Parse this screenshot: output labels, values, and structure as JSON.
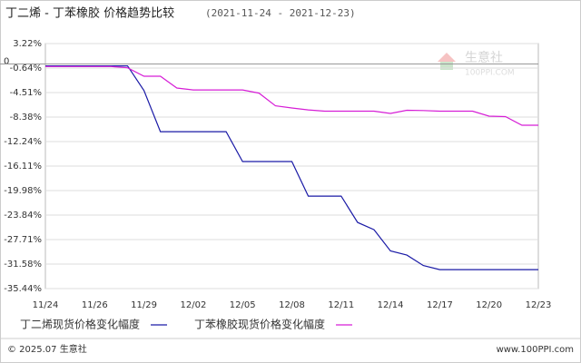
{
  "chart_data": {
    "type": "line",
    "title": "丁二烯 - 丁苯橡胶 价格趋势比较",
    "subtitle": "(2021-11-24 - 2021-12-23)",
    "categories": [
      "11/24",
      null,
      null,
      "11/26",
      null,
      null,
      "11/29",
      null,
      null,
      "12/02",
      null,
      null,
      "12/05",
      null,
      null,
      "12/08",
      null,
      null,
      "12/11",
      null,
      null,
      "12/14",
      null,
      null,
      "12/17",
      null,
      null,
      "12/20",
      null,
      null,
      "12/23"
    ],
    "series": [
      {
        "name": "丁二烯现货价格变化幅度",
        "color": "#1a1aa6",
        "values": [
          -0.3,
          -0.3,
          -0.3,
          -0.3,
          -0.3,
          -0.3,
          -4.2,
          -10.68,
          -10.68,
          -10.68,
          -10.68,
          -10.68,
          -15.4,
          -15.4,
          -15.4,
          -15.4,
          -20.85,
          -20.85,
          -20.85,
          -25.0,
          -26.15,
          -29.5,
          -30.16,
          -31.8,
          -32.45,
          -32.45,
          -32.45,
          -32.45,
          -32.45,
          -32.45,
          -32.45
        ]
      },
      {
        "name": "丁苯橡胶现货价格变化幅度",
        "color": "#d61ed6",
        "values": [
          -0.4,
          -0.4,
          -0.4,
          -0.4,
          -0.4,
          -0.6,
          -1.94,
          -1.94,
          -3.8,
          -4.09,
          -4.09,
          -4.09,
          -4.09,
          -4.6,
          -6.6,
          -6.95,
          -7.24,
          -7.45,
          -7.45,
          -7.45,
          -7.45,
          -7.8,
          -7.3,
          -7.35,
          -7.45,
          -7.45,
          -7.45,
          -8.24,
          -8.3,
          -9.67,
          -9.67
        ]
      }
    ],
    "ylim": [
      -35.44,
      3.22
    ],
    "yticks": [
      {
        "value": 3.22,
        "label": "3.22%"
      },
      0,
      {
        "value": -0.64,
        "label": "-0.64%"
      },
      {
        "value": -4.51,
        "label": "-4.51%"
      },
      {
        "value": -8.38,
        "label": "-8.38%"
      },
      {
        "value": -12.24,
        "label": "-12.24%"
      },
      {
        "value": -16.11,
        "label": "-16.11%"
      },
      {
        "value": -19.98,
        "label": "-19.98%"
      },
      {
        "value": -23.84,
        "label": "-23.84%"
      },
      {
        "value": -27.71,
        "label": "-27.71%"
      },
      {
        "value": -31.58,
        "label": "-31.58%"
      },
      {
        "value": -35.44,
        "label": "-35.44%"
      }
    ],
    "grid": true,
    "watermark": {
      "name": "生意社",
      "url": "100PPI.COM"
    },
    "footer": {
      "copyright": "© 2025.07 生意社",
      "url": "www.100PPI.com"
    }
  }
}
